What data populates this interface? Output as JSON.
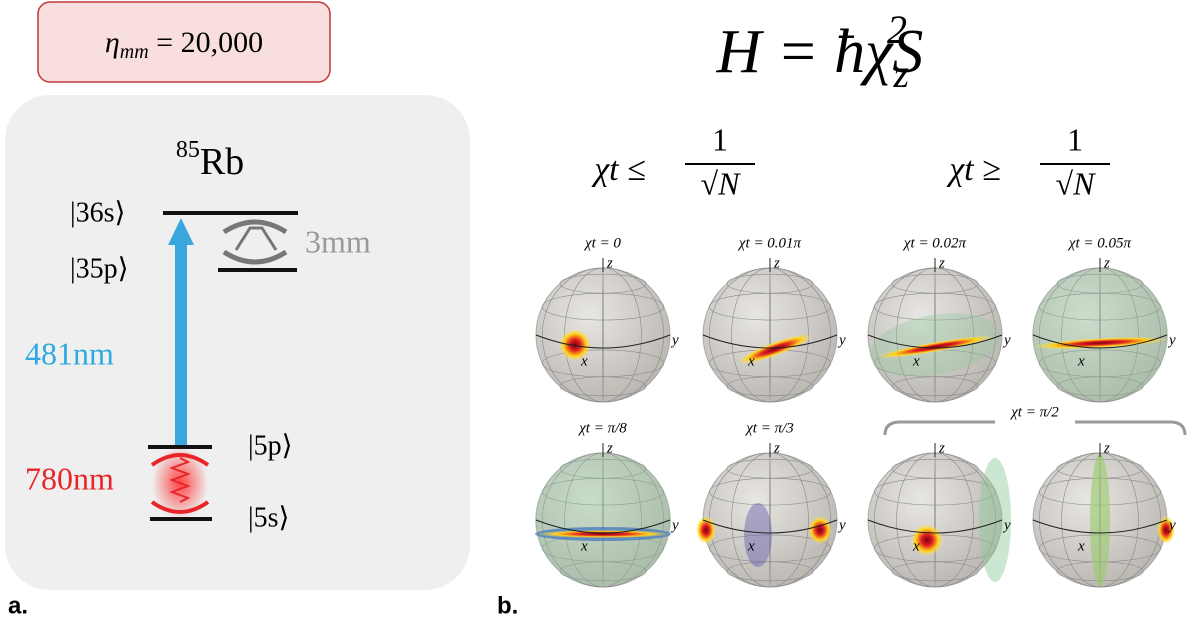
{
  "panel_a": {
    "label": "a.",
    "coupling": {
      "symbol": "η",
      "subscript": "mm",
      "value": " = 20,000"
    },
    "atom": {
      "mass": "85",
      "element": "Rb"
    },
    "levels": {
      "s36": "|36s⟩",
      "p35": "|35p⟩",
      "p5": "|5p⟩",
      "s5": "|5s⟩"
    },
    "cavity": "3mm",
    "laser_blue": "481nm",
    "laser_red": "780nm"
  },
  "panel_b": {
    "label": "b.",
    "hamiltonian": {
      "lhs": "H = ħχS",
      "subscript": "z",
      "superscript": "2"
    },
    "regimes": [
      {
        "lhs": "χt ≤",
        "numerator": "1",
        "denominator": "√N"
      },
      {
        "lhs": "χt ≥",
        "numerator": "1",
        "denominator": "√N"
      }
    ],
    "spheres": [
      "χt = 0",
      "χt = 0.01π",
      "χt = 0.02π",
      "χt = 0.05π",
      "χt = π/8",
      "χt = π/3"
    ],
    "bracket_label": "χt = π/2",
    "axes": {
      "x": "x",
      "y": "y",
      "z": "z"
    }
  }
}
